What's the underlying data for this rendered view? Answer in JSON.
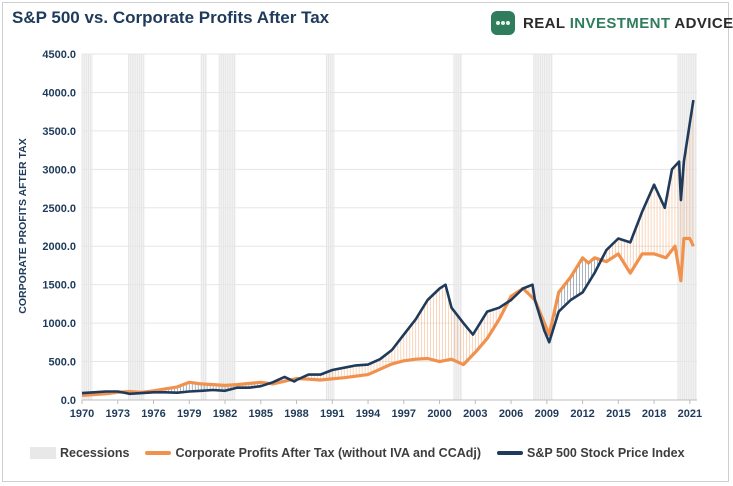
{
  "header": {
    "title": "S&P 500 vs. Corporate Profits After Tax",
    "brand_prefix": "REAL ",
    "brand_accent": "INVESTMENT",
    "brand_suffix": " ADVICE"
  },
  "colors": {
    "profits": "#f0924e",
    "sp500": "#1f3a5a",
    "recession": "#e8e8e8",
    "grid": "#e6e6e6",
    "brand": "#2f7d5c"
  },
  "chart_data": {
    "type": "line",
    "title": "S&P 500 vs. Corporate Profits After Tax",
    "ylabel": "CORPORATE PROFITS AFTER TAX",
    "xlabel": "",
    "xlim": [
      1970,
      2021.6
    ],
    "ylim": [
      0,
      4500
    ],
    "x_ticks": [
      "1970",
      "1973",
      "1976",
      "1979",
      "1982",
      "1985",
      "1988",
      "1991",
      "1994",
      "1997",
      "2000",
      "2003",
      "2006",
      "2009",
      "2012",
      "2015",
      "2018",
      "2021"
    ],
    "y_ticks": [
      "0.0",
      "500.0",
      "1000.0",
      "1500.0",
      "2000.0",
      "2500.0",
      "3000.0",
      "3500.0",
      "4000.0",
      "4500.0"
    ],
    "grid": true,
    "legend_position": "bottom",
    "legend": [
      "Recessions",
      "Corporate Profits After Tax (without IVA and CCAdj)",
      "S&P 500 Stock Price Index"
    ],
    "recessions": [
      [
        1970.0,
        1970.9
      ],
      [
        1973.9,
        1975.2
      ],
      [
        1980.0,
        1980.5
      ],
      [
        1981.5,
        1982.9
      ],
      [
        1990.5,
        1991.2
      ],
      [
        2001.2,
        2001.9
      ],
      [
        2007.9,
        2009.5
      ],
      [
        2020.0,
        2021.6
      ]
    ],
    "series": [
      {
        "name": "Corporate Profits After Tax (without IVA and CCAdj)",
        "x": [
          1970,
          1972,
          1973,
          1974,
          1975,
          1976,
          1978,
          1979,
          1980,
          1982,
          1983,
          1985,
          1986,
          1988,
          1989,
          1990,
          1992,
          1994,
          1996,
          1997,
          1998,
          1999,
          2000,
          2001,
          2002,
          2003,
          2004,
          2005,
          2006,
          2007,
          2008,
          2008.8,
          2009.2,
          2010,
          2011,
          2012,
          2012.5,
          2013,
          2014,
          2015,
          2016,
          2017,
          2018,
          2019,
          2019.75,
          2020.25,
          2020.5,
          2021,
          2021.3
        ],
        "values": [
          60,
          80,
          100,
          110,
          100,
          120,
          170,
          230,
          210,
          190,
          200,
          230,
          210,
          280,
          270,
          260,
          290,
          330,
          470,
          510,
          530,
          540,
          500,
          530,
          460,
          620,
          800,
          1050,
          1350,
          1450,
          1300,
          1000,
          850,
          1400,
          1600,
          1850,
          1780,
          1850,
          1800,
          1900,
          1650,
          1900,
          1900,
          1850,
          2000,
          1550,
          2100,
          2100,
          2000
        ]
      },
      {
        "name": "S&P 500 Stock Price Index",
        "x": [
          1970,
          1971,
          1972,
          1973,
          1974,
          1975,
          1976,
          1977,
          1978,
          1979,
          1980,
          1981,
          1982,
          1983,
          1984,
          1985,
          1986,
          1987,
          1987.8,
          1988,
          1989,
          1990,
          1991,
          1992,
          1993,
          1994,
          1995,
          1996,
          1997,
          1998,
          1999,
          2000,
          2000.5,
          2001,
          2002,
          2002.8,
          2003,
          2004,
          2005,
          2006,
          2007,
          2007.8,
          2008,
          2008.8,
          2009.2,
          2010,
          2011,
          2012,
          2013,
          2014,
          2015,
          2016,
          2017,
          2018,
          2018.9,
          2019.5,
          2020.1,
          2020.25,
          2020.5,
          2021,
          2021.3
        ],
        "values": [
          90,
          100,
          110,
          110,
          80,
          90,
          100,
          100,
          95,
          110,
          120,
          130,
          120,
          160,
          160,
          180,
          230,
          300,
          240,
          260,
          330,
          330,
          390,
          420,
          450,
          460,
          530,
          650,
          850,
          1050,
          1300,
          1450,
          1500,
          1200,
          1000,
          850,
          900,
          1150,
          1200,
          1300,
          1450,
          1500,
          1300,
          900,
          750,
          1150,
          1300,
          1400,
          1650,
          1950,
          2100,
          2050,
          2450,
          2800,
          2500,
          3000,
          3100,
          2600,
          3100,
          3600,
          3900
        ]
      }
    ]
  },
  "legend": {
    "recessions": "Recessions",
    "profits": "Corporate Profits After Tax (without IVA and CCAdj)",
    "sp500": "S&P 500 Stock Price Index"
  }
}
